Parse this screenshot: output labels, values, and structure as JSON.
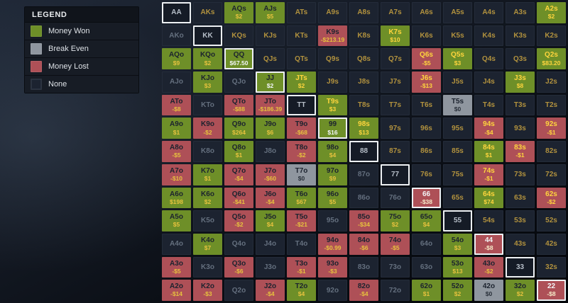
{
  "legend": {
    "title": "LEGEND",
    "items": [
      {
        "label": "Money Won",
        "color": "#6e8f28"
      },
      {
        "label": "Break Even",
        "color": "#8f969f"
      },
      {
        "label": "Money Lost",
        "color": "#ae5057"
      },
      {
        "label": "None",
        "color": "#1c2330"
      }
    ]
  },
  "colors": {
    "money_won": "#6e8f28",
    "break_even": "#8f969f",
    "money_lost": "#ae5057",
    "none_cell": "#1c2330",
    "diagonal_border": "#edf0f3"
  },
  "grid": {
    "rows": [
      {
        "cells": [
          {
            "h": "AA",
            "c": "n"
          },
          {
            "h": "AKs",
            "c": "n"
          },
          {
            "h": "AQs",
            "v": "$2",
            "c": "g",
            "dk": true
          },
          {
            "h": "AJs",
            "v": "$5",
            "c": "g",
            "dk": true
          },
          {
            "h": "ATs",
            "c": "n"
          },
          {
            "h": "A9s",
            "c": "n"
          },
          {
            "h": "A8s",
            "c": "n"
          },
          {
            "h": "A7s",
            "c": "n"
          },
          {
            "h": "A6s",
            "c": "n"
          },
          {
            "h": "A5s",
            "c": "n"
          },
          {
            "h": "A4s",
            "c": "n"
          },
          {
            "h": "A3s",
            "c": "n"
          },
          {
            "h": "A2s",
            "v": "$2",
            "c": "g"
          }
        ]
      },
      {
        "cells": [
          {
            "h": "AKo",
            "c": "n"
          },
          {
            "h": "KK",
            "c": "n"
          },
          {
            "h": "KQs",
            "c": "n"
          },
          {
            "h": "KJs",
            "c": "n"
          },
          {
            "h": "KTs",
            "c": "n"
          },
          {
            "h": "K9s",
            "v": "-$213.19",
            "c": "r",
            "dk": true
          },
          {
            "h": "K8s",
            "c": "n"
          },
          {
            "h": "K7s",
            "v": "$10",
            "c": "g"
          },
          {
            "h": "K6s",
            "c": "n"
          },
          {
            "h": "K5s",
            "c": "n"
          },
          {
            "h": "K4s",
            "c": "n"
          },
          {
            "h": "K3s",
            "c": "n"
          },
          {
            "h": "K2s",
            "c": "n"
          }
        ]
      },
      {
        "cells": [
          {
            "h": "AQo",
            "v": "$9",
            "c": "g"
          },
          {
            "h": "KQo",
            "v": "$2",
            "c": "g"
          },
          {
            "h": "QQ",
            "v": "$67.50",
            "c": "g"
          },
          {
            "h": "QJs",
            "c": "n"
          },
          {
            "h": "QTs",
            "c": "n"
          },
          {
            "h": "Q9s",
            "c": "n"
          },
          {
            "h": "Q8s",
            "c": "n"
          },
          {
            "h": "Q7s",
            "c": "n"
          },
          {
            "h": "Q6s",
            "v": "-$5",
            "c": "r"
          },
          {
            "h": "Q5s",
            "v": "$3",
            "c": "g"
          },
          {
            "h": "Q4s",
            "c": "n"
          },
          {
            "h": "Q3s",
            "c": "n"
          },
          {
            "h": "Q2s",
            "v": "$83.20",
            "c": "g"
          }
        ]
      },
      {
        "cells": [
          {
            "h": "AJo",
            "c": "n"
          },
          {
            "h": "KJo",
            "v": "$3",
            "c": "g"
          },
          {
            "h": "QJo",
            "c": "n"
          },
          {
            "h": "JJ",
            "v": "$2",
            "c": "g"
          },
          {
            "h": "JTs",
            "v": "$2",
            "c": "g"
          },
          {
            "h": "J9s",
            "c": "n"
          },
          {
            "h": "J8s",
            "c": "n"
          },
          {
            "h": "J7s",
            "c": "n"
          },
          {
            "h": "J6s",
            "v": "-$13",
            "c": "r"
          },
          {
            "h": "J5s",
            "c": "n"
          },
          {
            "h": "J4s",
            "c": "n"
          },
          {
            "h": "J3s",
            "v": "$8",
            "c": "g"
          },
          {
            "h": "J2s",
            "c": "n"
          }
        ]
      },
      {
        "cells": [
          {
            "h": "ATo",
            "v": "-$8",
            "c": "r"
          },
          {
            "h": "KTo",
            "c": "n"
          },
          {
            "h": "QTo",
            "v": "-$88",
            "c": "r"
          },
          {
            "h": "JTo",
            "v": "-$186.39",
            "c": "r"
          },
          {
            "h": "TT",
            "c": "n"
          },
          {
            "h": "T9s",
            "v": "$3",
            "c": "g"
          },
          {
            "h": "T8s",
            "c": "n"
          },
          {
            "h": "T7s",
            "c": "n"
          },
          {
            "h": "T6s",
            "c": "n"
          },
          {
            "h": "T5s",
            "v": "$0",
            "c": "e"
          },
          {
            "h": "T4s",
            "c": "n"
          },
          {
            "h": "T3s",
            "c": "n"
          },
          {
            "h": "T2s",
            "c": "n"
          }
        ]
      },
      {
        "cells": [
          {
            "h": "A9o",
            "v": "$1",
            "c": "g"
          },
          {
            "h": "K9o",
            "v": "-$2",
            "c": "r"
          },
          {
            "h": "Q9o",
            "v": "$264",
            "c": "g"
          },
          {
            "h": "J9o",
            "v": "$6",
            "c": "g"
          },
          {
            "h": "T9o",
            "v": "-$68",
            "c": "r"
          },
          {
            "h": "99",
            "v": "$16",
            "c": "g"
          },
          {
            "h": "98s",
            "v": "$13",
            "c": "g"
          },
          {
            "h": "97s",
            "c": "n"
          },
          {
            "h": "96s",
            "c": "n"
          },
          {
            "h": "95s",
            "c": "n"
          },
          {
            "h": "94s",
            "v": "-$4",
            "c": "r"
          },
          {
            "h": "93s",
            "c": "n"
          },
          {
            "h": "92s",
            "v": "-$1",
            "c": "r"
          }
        ]
      },
      {
        "cells": [
          {
            "h": "A8o",
            "v": "-$5",
            "c": "r"
          },
          {
            "h": "K8o",
            "c": "n"
          },
          {
            "h": "Q8o",
            "v": "$1",
            "c": "g"
          },
          {
            "h": "J8o",
            "c": "n"
          },
          {
            "h": "T8o",
            "v": "-$2",
            "c": "r"
          },
          {
            "h": "98o",
            "v": "$4",
            "c": "g"
          },
          {
            "h": "88",
            "c": "n"
          },
          {
            "h": "87s",
            "c": "n"
          },
          {
            "h": "86s",
            "c": "n"
          },
          {
            "h": "85s",
            "c": "n"
          },
          {
            "h": "84s",
            "v": "$1",
            "c": "g"
          },
          {
            "h": "83s",
            "v": "-$1",
            "c": "r"
          },
          {
            "h": "82s",
            "c": "n"
          }
        ]
      },
      {
        "cells": [
          {
            "h": "A7o",
            "v": "-$10",
            "c": "r"
          },
          {
            "h": "K7o",
            "v": "$1",
            "c": "g"
          },
          {
            "h": "Q7o",
            "v": "-$4",
            "c": "r"
          },
          {
            "h": "J7o",
            "v": "-$60",
            "c": "r"
          },
          {
            "h": "T7o",
            "v": "$0",
            "c": "e"
          },
          {
            "h": "97o",
            "v": "$9",
            "c": "g"
          },
          {
            "h": "87o",
            "c": "n"
          },
          {
            "h": "77",
            "c": "n"
          },
          {
            "h": "76s",
            "c": "n"
          },
          {
            "h": "75s",
            "c": "n"
          },
          {
            "h": "74s",
            "v": "-$1",
            "c": "r"
          },
          {
            "h": "73s",
            "c": "n"
          },
          {
            "h": "72s",
            "c": "n"
          }
        ]
      },
      {
        "cells": [
          {
            "h": "A6o",
            "v": "$198",
            "c": "g"
          },
          {
            "h": "K6o",
            "v": "$2",
            "c": "g"
          },
          {
            "h": "Q6o",
            "v": "-$41",
            "c": "r"
          },
          {
            "h": "J6o",
            "v": "-$4",
            "c": "r"
          },
          {
            "h": "T6o",
            "v": "$67",
            "c": "g"
          },
          {
            "h": "96o",
            "v": "$5",
            "c": "g"
          },
          {
            "h": "86o",
            "c": "n"
          },
          {
            "h": "76o",
            "c": "n"
          },
          {
            "h": "66",
            "v": "-$38",
            "c": "r"
          },
          {
            "h": "65s",
            "c": "n"
          },
          {
            "h": "64s",
            "v": "$74",
            "c": "g"
          },
          {
            "h": "63s",
            "c": "n"
          },
          {
            "h": "62s",
            "v": "-$2",
            "c": "r"
          }
        ]
      },
      {
        "cells": [
          {
            "h": "A5o",
            "v": "$5",
            "c": "g"
          },
          {
            "h": "K5o",
            "c": "n"
          },
          {
            "h": "Q5o",
            "v": "-$2",
            "c": "r"
          },
          {
            "h": "J5o",
            "v": "$4",
            "c": "g"
          },
          {
            "h": "T5o",
            "v": "-$21",
            "c": "r"
          },
          {
            "h": "95o",
            "c": "n"
          },
          {
            "h": "85o",
            "v": "-$34",
            "c": "r"
          },
          {
            "h": "75o",
            "v": "$2",
            "c": "g"
          },
          {
            "h": "65o",
            "v": "$4",
            "c": "g"
          },
          {
            "h": "55",
            "c": "n"
          },
          {
            "h": "54s",
            "c": "n"
          },
          {
            "h": "53s",
            "c": "n"
          },
          {
            "h": "52s",
            "c": "n"
          }
        ]
      },
      {
        "cells": [
          {
            "h": "A4o",
            "c": "n"
          },
          {
            "h": "K4o",
            "v": "$7",
            "c": "g"
          },
          {
            "h": "Q4o",
            "c": "n"
          },
          {
            "h": "J4o",
            "c": "n"
          },
          {
            "h": "T4o",
            "c": "n"
          },
          {
            "h": "94o",
            "v": "-$0.99",
            "c": "r"
          },
          {
            "h": "84o",
            "v": "-$6",
            "c": "r"
          },
          {
            "h": "74o",
            "v": "-$5",
            "c": "r"
          },
          {
            "h": "64o",
            "c": "n"
          },
          {
            "h": "54o",
            "v": "$3",
            "c": "g"
          },
          {
            "h": "44",
            "v": "-$8",
            "c": "r"
          },
          {
            "h": "43s",
            "c": "n"
          },
          {
            "h": "42s",
            "c": "n"
          }
        ]
      },
      {
        "cells": [
          {
            "h": "A3o",
            "v": "-$5",
            "c": "r"
          },
          {
            "h": "K3o",
            "c": "n"
          },
          {
            "h": "Q3o",
            "v": "-$6",
            "c": "r"
          },
          {
            "h": "J3o",
            "c": "n"
          },
          {
            "h": "T3o",
            "v": "-$1",
            "c": "r"
          },
          {
            "h": "93o",
            "v": "-$3",
            "c": "r"
          },
          {
            "h": "83o",
            "c": "n"
          },
          {
            "h": "73o",
            "c": "n"
          },
          {
            "h": "63o",
            "c": "n"
          },
          {
            "h": "53o",
            "v": "$13",
            "c": "g"
          },
          {
            "h": "43o",
            "v": "-$2",
            "c": "r"
          },
          {
            "h": "33",
            "c": "n"
          },
          {
            "h": "32s",
            "c": "n"
          }
        ]
      },
      {
        "cells": [
          {
            "h": "A2o",
            "v": "-$14",
            "c": "r"
          },
          {
            "h": "K2o",
            "v": "-$3",
            "c": "r"
          },
          {
            "h": "Q2o",
            "c": "n"
          },
          {
            "h": "J2o",
            "v": "-$4",
            "c": "r"
          },
          {
            "h": "T2o",
            "v": "$4",
            "c": "g"
          },
          {
            "h": "92o",
            "c": "n"
          },
          {
            "h": "82o",
            "v": "-$4",
            "c": "r"
          },
          {
            "h": "72o",
            "c": "n"
          },
          {
            "h": "62o",
            "v": "$1",
            "c": "g"
          },
          {
            "h": "52o",
            "v": "$2",
            "c": "g"
          },
          {
            "h": "42o",
            "v": "$0",
            "c": "e"
          },
          {
            "h": "32o",
            "v": "$2",
            "c": "g"
          },
          {
            "h": "22",
            "v": "-$8",
            "c": "r"
          }
        ]
      }
    ]
  }
}
